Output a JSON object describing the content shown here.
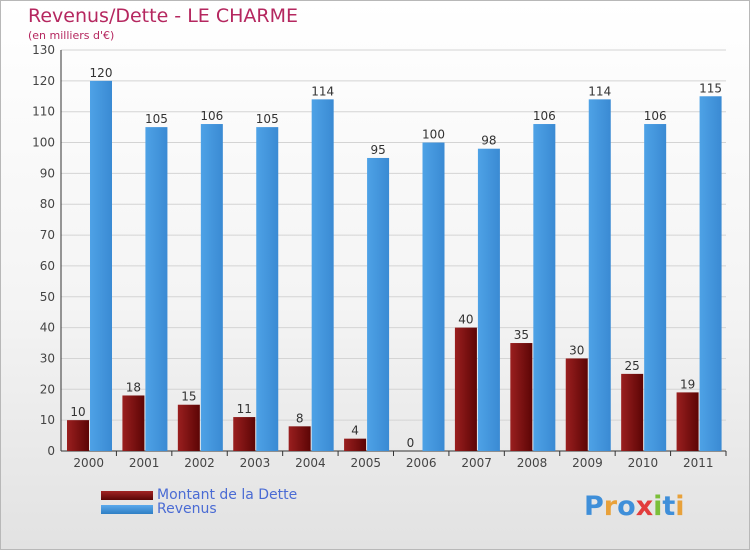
{
  "title": "Revenus/Dette - LE CHARME",
  "subtitle": "(en milliers d'€)",
  "logo": "Proxiti",
  "colors": {
    "debt": "#7a0d0d",
    "revenue": "#3f94dc",
    "title": "#b5275f",
    "legend_text": "#4a6bd4"
  },
  "chart_data": {
    "type": "bar",
    "categories": [
      "2000",
      "2001",
      "2002",
      "2003",
      "2004",
      "2005",
      "2006",
      "2007",
      "2008",
      "2009",
      "2010",
      "2011"
    ],
    "series": [
      {
        "name": "Montant de la Dette",
        "values": [
          10,
          18,
          15,
          11,
          8,
          4,
          0,
          40,
          35,
          30,
          25,
          19
        ]
      },
      {
        "name": "Revenus",
        "values": [
          120,
          105,
          106,
          105,
          114,
          95,
          100,
          98,
          106,
          114,
          106,
          115
        ]
      }
    ],
    "ylim": [
      0,
      130
    ],
    "yticks": [
      0,
      10,
      20,
      30,
      40,
      50,
      60,
      70,
      80,
      90,
      100,
      110,
      120,
      130
    ],
    "grid": true,
    "legend_position": "bottom-left"
  }
}
